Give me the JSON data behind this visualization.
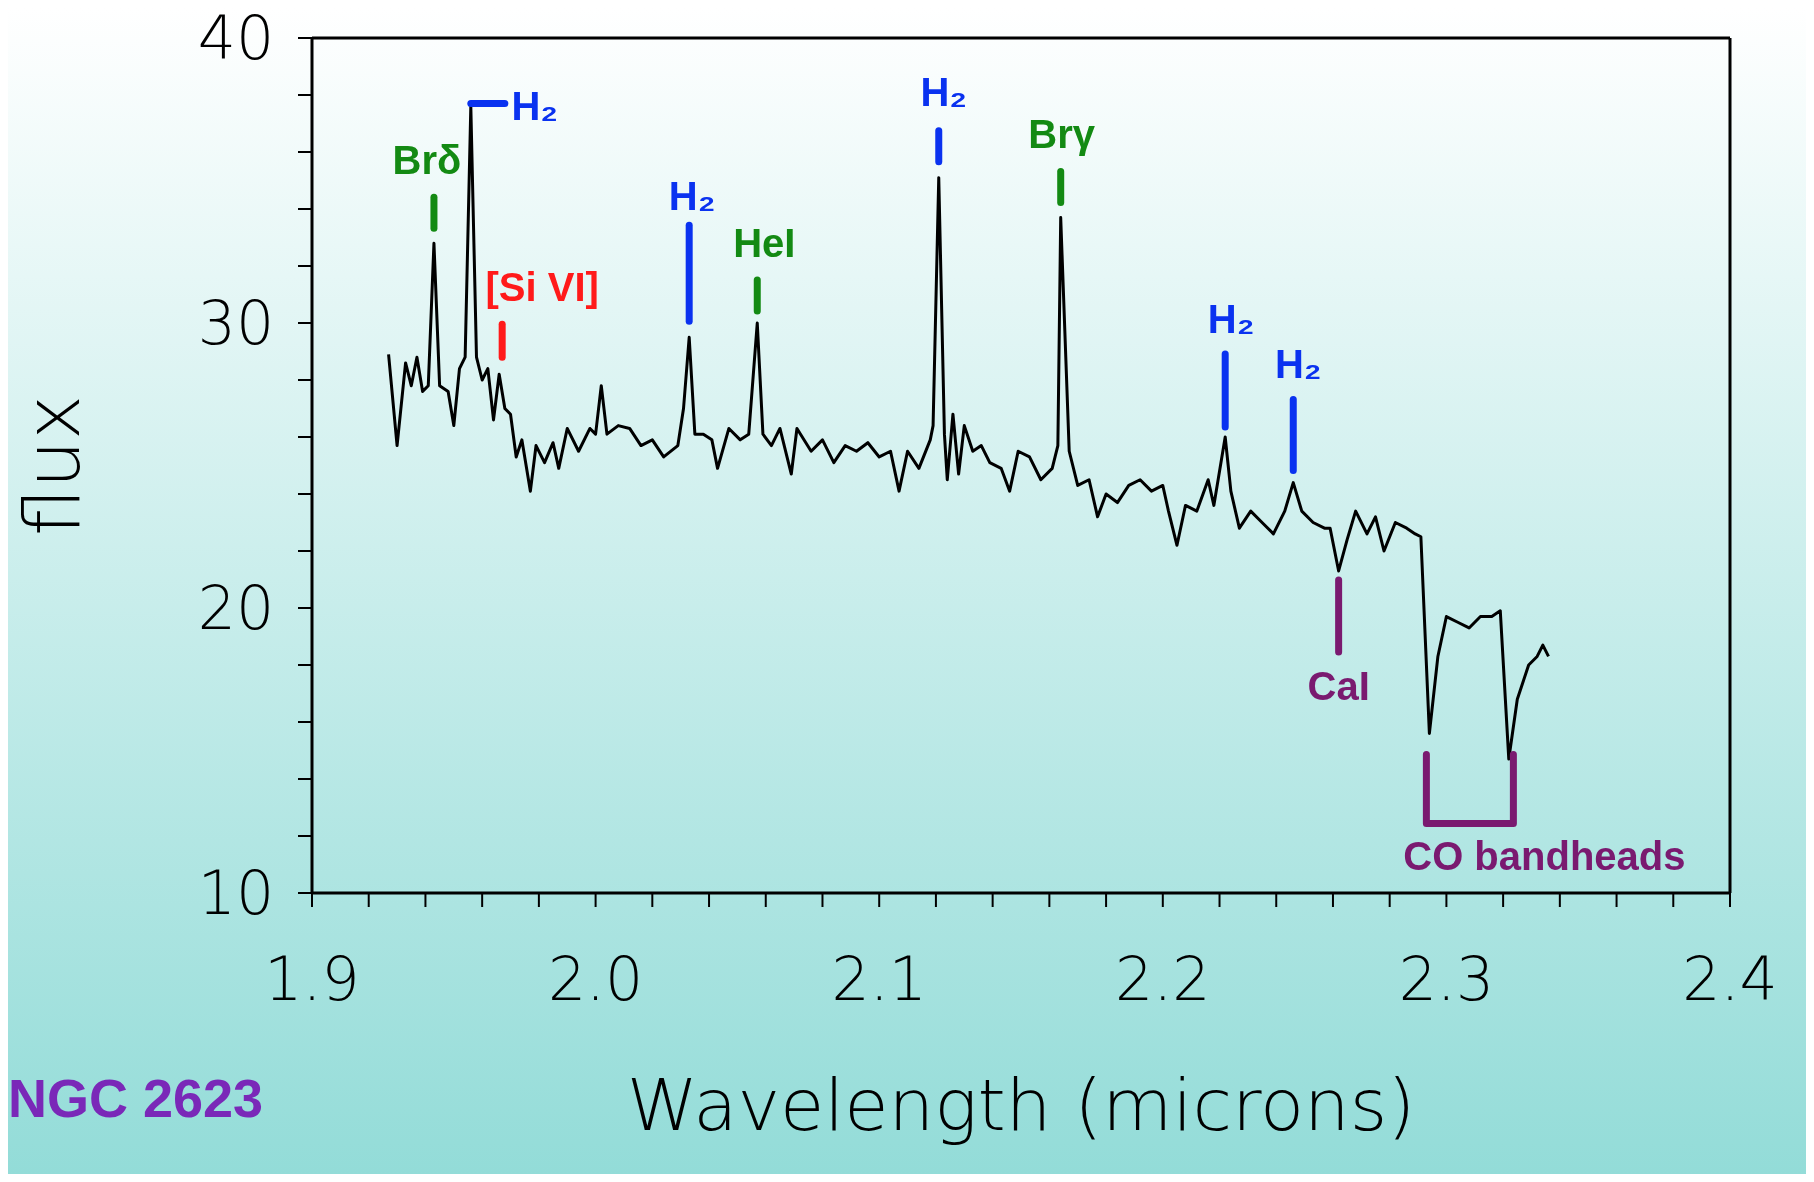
{
  "chart_data": {
    "type": "line",
    "xlabel": "Wavelength (microns)",
    "ylabel": "flux",
    "x": [
      1.927,
      1.93,
      1.933,
      1.935,
      1.937,
      1.939,
      1.941,
      1.943,
      1.945,
      1.948,
      1.95,
      1.952,
      1.954,
      1.956,
      1.958,
      1.96,
      1.962,
      1.964,
      1.966,
      1.968,
      1.97,
      1.972,
      1.974,
      1.977,
      1.979,
      1.982,
      1.985,
      1.987,
      1.99,
      1.994,
      1.998,
      2.0,
      2.002,
      2.004,
      2.008,
      2.012,
      2.016,
      2.02,
      2.024,
      2.029,
      2.031,
      2.033,
      2.035,
      2.038,
      2.041,
      2.043,
      2.047,
      2.051,
      2.054,
      2.057,
      2.059,
      2.062,
      2.065,
      2.069,
      2.071,
      2.076,
      2.08,
      2.084,
      2.088,
      2.092,
      2.096,
      2.1,
      2.104,
      2.107,
      2.11,
      2.114,
      2.118,
      2.119,
      2.121,
      2.123,
      2.124,
      2.126,
      2.128,
      2.13,
      2.133,
      2.136,
      2.139,
      2.143,
      2.146,
      2.149,
      2.153,
      2.157,
      2.161,
      2.163,
      2.164,
      2.167,
      2.17,
      2.174,
      2.177,
      2.18,
      2.184,
      2.188,
      2.192,
      2.196,
      2.2,
      2.202,
      2.205,
      2.208,
      2.212,
      2.216,
      2.218,
      2.222,
      2.224,
      2.227,
      2.231,
      2.235,
      2.239,
      2.243,
      2.246,
      2.249,
      2.253,
      2.257,
      2.259,
      2.262,
      2.265,
      2.268,
      2.272,
      2.275,
      2.278,
      2.282,
      2.286,
      2.289,
      2.291,
      2.294,
      2.297,
      2.3,
      2.304,
      2.308,
      2.312,
      2.316,
      2.319,
      2.322,
      2.325,
      2.329,
      2.332,
      2.334,
      2.336
    ],
    "series": [
      {
        "color": "#000000",
        "values": [
          28.9,
          25.7,
          28.6,
          27.8,
          28.8,
          27.6,
          27.8,
          32.8,
          27.8,
          27.6,
          26.4,
          28.4,
          28.8,
          37.6,
          28.8,
          28.0,
          28.4,
          26.6,
          28.2,
          27.0,
          26.8,
          25.3,
          25.9,
          24.1,
          25.7,
          25.1,
          25.8,
          24.9,
          26.3,
          25.5,
          26.3,
          26.1,
          27.8,
          26.1,
          26.4,
          26.3,
          25.7,
          25.9,
          25.3,
          25.7,
          27.0,
          29.5,
          26.1,
          26.1,
          25.9,
          24.9,
          26.3,
          25.9,
          26.1,
          30.0,
          26.1,
          25.7,
          26.3,
          24.7,
          26.3,
          25.5,
          25.9,
          25.1,
          25.7,
          25.5,
          25.8,
          25.3,
          25.5,
          24.1,
          25.5,
          24.9,
          25.9,
          26.4,
          35.1,
          26.1,
          24.5,
          26.8,
          24.7,
          26.4,
          25.5,
          25.7,
          25.1,
          24.9,
          24.1,
          25.5,
          25.3,
          24.5,
          24.9,
          25.7,
          33.7,
          25.5,
          24.3,
          24.5,
          23.2,
          24.0,
          23.7,
          24.3,
          24.5,
          24.1,
          24.3,
          23.4,
          22.2,
          23.6,
          23.4,
          24.5,
          23.6,
          26.0,
          24.1,
          22.8,
          23.4,
          23.0,
          22.6,
          23.4,
          24.4,
          23.4,
          23.0,
          22.8,
          22.8,
          21.3,
          22.4,
          23.4,
          22.6,
          23.2,
          22.0,
          23.0,
          22.8,
          22.6,
          22.5,
          15.6,
          18.3,
          19.7,
          19.5,
          19.3,
          19.7,
          19.7,
          19.9,
          14.7,
          16.8,
          18.0,
          18.3,
          18.7,
          18.3
        ]
      }
    ],
    "xlim": [
      1.9,
      2.4
    ],
    "xticks": [
      {
        "value": 1.9,
        "label": "1.9"
      },
      {
        "value": 1.92,
        "label": null
      },
      {
        "value": 1.94,
        "label": null
      },
      {
        "value": 1.96,
        "label": null
      },
      {
        "value": 1.98,
        "label": null
      },
      {
        "value": 2.0,
        "label": "2.0"
      },
      {
        "value": 2.02,
        "label": null
      },
      {
        "value": 2.04,
        "label": null
      },
      {
        "value": 2.06,
        "label": null
      },
      {
        "value": 2.08,
        "label": null
      },
      {
        "value": 2.1,
        "label": "2.1"
      },
      {
        "value": 2.12,
        "label": null
      },
      {
        "value": 2.14,
        "label": null
      },
      {
        "value": 2.16,
        "label": null
      },
      {
        "value": 2.18,
        "label": null
      },
      {
        "value": 2.2,
        "label": "2.2"
      },
      {
        "value": 2.22,
        "label": null
      },
      {
        "value": 2.24,
        "label": null
      },
      {
        "value": 2.26,
        "label": null
      },
      {
        "value": 2.28,
        "label": null
      },
      {
        "value": 2.3,
        "label": "2.3"
      },
      {
        "value": 2.32,
        "label": null
      },
      {
        "value": 2.34,
        "label": null
      },
      {
        "value": 2.36,
        "label": null
      },
      {
        "value": 2.38,
        "label": null
      },
      {
        "value": 2.4,
        "label": "2.4"
      }
    ],
    "ylim": [
      10,
      40
    ],
    "yticks": [
      10,
      {
        "value": 12,
        "label": null
      },
      {
        "value": 14,
        "label": null
      },
      {
        "value": 16,
        "label": null
      },
      {
        "value": 18,
        "label": null
      },
      20,
      {
        "value": 22,
        "label": null
      },
      {
        "value": 24,
        "label": null
      },
      {
        "value": 26,
        "label": null
      },
      {
        "value": 28,
        "label": null
      },
      30,
      {
        "value": 32,
        "label": null
      },
      {
        "value": 34,
        "label": null
      },
      {
        "value": 36,
        "label": null
      },
      {
        "value": 38,
        "label": null
      },
      40
    ],
    "marker": "none",
    "line_style": "solid",
    "annotations": [
      {
        "text": "Brδ",
        "x": 1.943,
        "y": 32.8
      },
      {
        "text": "H₂",
        "x": 1.956,
        "y": 37.6
      },
      {
        "text": "[Si VI]",
        "x": 1.966,
        "y": 28.2
      },
      {
        "text": "H₂",
        "x": 2.033,
        "y": 29.5
      },
      {
        "text": "HeI",
        "x": 2.057,
        "y": 30.0
      },
      {
        "text": "H₂",
        "x": 2.121,
        "y": 35.1
      },
      {
        "text": "Brγ",
        "x": 2.164,
        "y": 33.7
      },
      {
        "text": "H₂",
        "x": 2.222,
        "y": 26.0
      },
      {
        "text": "H₂",
        "x": 2.246,
        "y": 24.4
      },
      {
        "text": "CaI",
        "x": 2.262,
        "y": 21.3
      },
      {
        "text": "CO bandheads",
        "x": 2.294,
        "y": 15.6
      },
      "NGC 2623"
    ]
  }
}
